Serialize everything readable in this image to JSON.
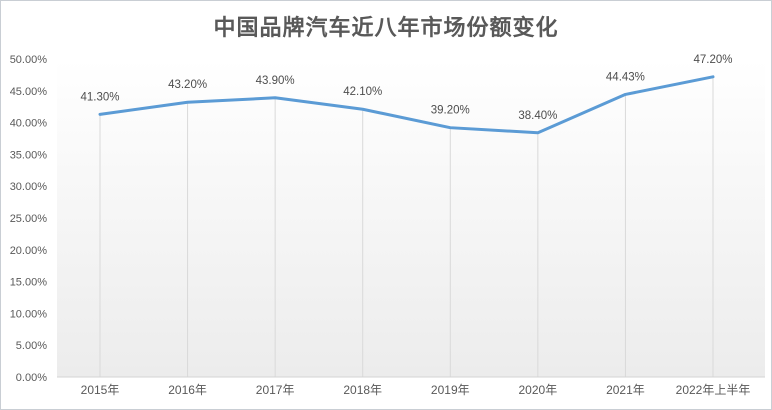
{
  "title": "中国品牌汽车近八年市场份额变化",
  "colors": {
    "line": "#5B9BD5",
    "drop_line": "#D9D9D9",
    "axis_line": "#D3D3D3",
    "tick_text": "#595959",
    "data_label_text": "#4D4D4D",
    "title_text": "#595959",
    "border": "#C9CED4",
    "plot_top": "#FFFFFF",
    "plot_bottom": "#ECECEC"
  },
  "chart_data": {
    "type": "line",
    "title": "中国品牌汽车近八年市场份额变化",
    "categories": [
      "2015年",
      "2016年",
      "2017年",
      "2018年",
      "2019年",
      "2020年",
      "2021年",
      "2022年上半年"
    ],
    "values": [
      41.3,
      43.2,
      43.9,
      42.1,
      39.2,
      38.4,
      44.43,
      47.2
    ],
    "data_labels": [
      "41.30%",
      "43.20%",
      "43.90%",
      "42.10%",
      "39.20%",
      "38.40%",
      "44.43%",
      "47.20%"
    ],
    "y_ticks": [
      "0.00%",
      "5.00%",
      "10.00%",
      "15.00%",
      "20.00%",
      "25.00%",
      "30.00%",
      "35.00%",
      "40.00%",
      "45.00%",
      "50.00%"
    ],
    "ylim": [
      0,
      50
    ],
    "xlabel": "",
    "ylabel": "",
    "grid": "vertical-drop-lines-only",
    "legend": "none"
  }
}
